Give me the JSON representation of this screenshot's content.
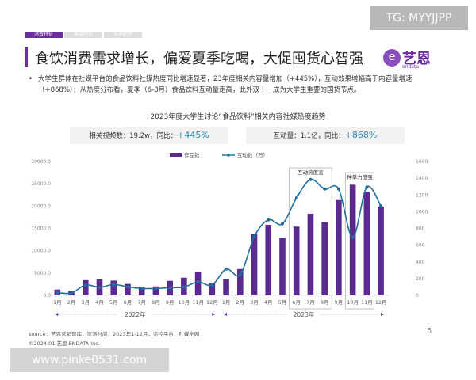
{
  "watermark_top": "TG: MYYJJPP",
  "watermark_bottom": "www.pinke0531.com",
  "tabs": [
    {
      "label": "消费特征",
      "active": true
    },
    {
      "label": "渠道特征",
      "active": false
    },
    {
      "label": "未来趋势",
      "active": false
    }
  ],
  "title": "食饮消费需求增长，偏爱夏季吃喝，大促囤货心智强",
  "logo": {
    "zh": "艺恩",
    "en": "endata"
  },
  "bullet": "大学生群体在社媒平台的食品饮料社媒热度同比增速显著，23年度相关内容量增加（+445%），互动效果增幅高于内容量增速（+868%）；从热度分布看，夏季（6-8月）食品饮料互动量走高，此外双十一成为大学生重要的国货节点。",
  "kpis": [
    {
      "label": "相关视频数：19.2w，同比：",
      "value": "+445%"
    },
    {
      "label": "互动量：1.1亿，同比：",
      "value": "+868%"
    }
  ],
  "source": "source：艺恩营销智库，监测时间：2023年1-12月，监控平台：社媒全网",
  "copyright": "©2024.01  艺恩 ENDATA Inc.",
  "page_number": "5",
  "chart_data": {
    "type": "bar+line",
    "title": "2023年度大学生讨论“食品饮料”相关内容社媒热度趋势",
    "categories": [
      "1月",
      "2月",
      "3月",
      "4月",
      "5月",
      "6月",
      "7月",
      "8月",
      "9月",
      "10月",
      "11月",
      "12月",
      "1月",
      "2月",
      "3月",
      "4月",
      "5月",
      "6月",
      "7月",
      "8月",
      "9月",
      "10月",
      "11月",
      "12月"
    ],
    "year_groups": [
      {
        "label": "2022年",
        "months": 12
      },
      {
        "label": "2023年",
        "months": 12
      }
    ],
    "series": [
      {
        "name": "作品数",
        "type": "bar",
        "axis": "left",
        "color": "#5b2a91",
        "values": [
          1300,
          950,
          3400,
          3650,
          3300,
          2550,
          1900,
          2000,
          3250,
          3950,
          5200,
          2700,
          3700,
          5900,
          13700,
          15800,
          12900,
          15400,
          18300,
          16450,
          21350,
          24800,
          23250,
          19900
        ]
      },
      {
        "name": "互动数（万）",
        "type": "line",
        "axis": "right",
        "color": "#1f6f9f",
        "values": [
          32,
          28,
          123,
          95,
          130,
          101,
          82,
          82,
          91,
          98,
          161,
          123,
          315,
          249,
          703,
          902,
          855,
          1164,
          1385,
          1271,
          1271,
          694,
          1293,
          1069
        ]
      }
    ],
    "left_axis": {
      "range": [
        0,
        30000
      ],
      "ticks": [
        "0.0",
        "5000.0",
        "10000.0",
        "15000.0",
        "20000.0",
        "25000.0",
        "30000.0"
      ]
    },
    "right_axis": {
      "range": [
        0,
        1600
      ],
      "ticks": [
        "0",
        "200",
        "400",
        "600",
        "800",
        "1000",
        "1200",
        "1400",
        "1600"
      ]
    },
    "annotations": [
      {
        "label": "互动热度高",
        "from_index": 17,
        "to_index": 19
      },
      {
        "label": "种草力度强",
        "from_index": 21,
        "to_index": 22
      }
    ],
    "legend": "top-center",
    "grid": false
  }
}
